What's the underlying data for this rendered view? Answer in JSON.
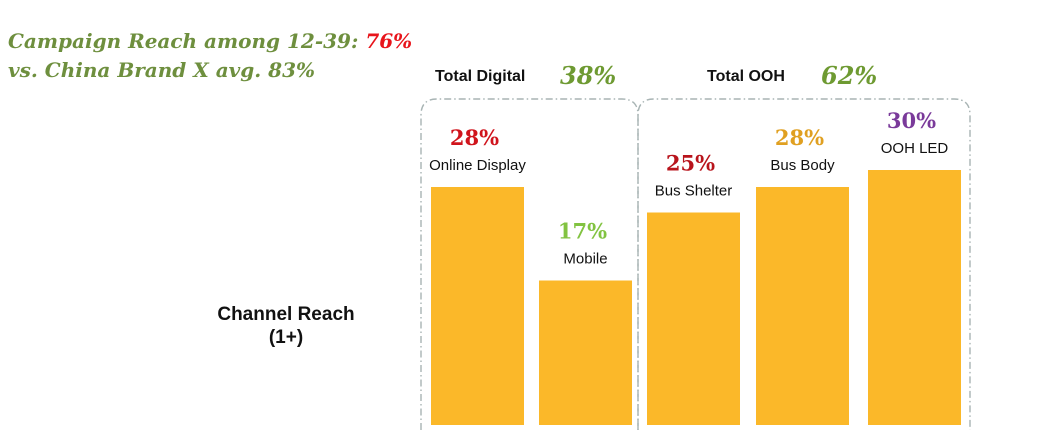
{
  "headline": {
    "line1_prefix": "Campaign Reach among 12-39: ",
    "line1_value": "76%",
    "line2": "vs. China Brand X avg. 83%"
  },
  "axis_title": {
    "line1": "Channel Reach",
    "line2": "(1+)"
  },
  "colors": {
    "headline": "#6e8f3e",
    "headline_value": "#e8141b",
    "bar": "#fbb829",
    "group_pct": "#6e9a32",
    "bracket": "#a8b4b4"
  },
  "chart_data": {
    "type": "bar",
    "title": "",
    "xlabel": "",
    "ylabel": "Channel Reach (1+)",
    "ylim": [
      0,
      30
    ],
    "categories": [
      "Online Display",
      "Mobile",
      "Bus Shelter",
      "Bus Body",
      "OOH LED"
    ],
    "values": [
      28,
      17,
      25,
      28,
      30
    ],
    "value_labels": [
      "28%",
      "17%",
      "25%",
      "28%",
      "30%"
    ],
    "value_label_colors": [
      "#d0141c",
      "#82c341",
      "#b8141c",
      "#e0a021",
      "#7a3a9a"
    ],
    "groups": [
      {
        "name": "Total Digital",
        "value": "38%",
        "members": [
          0,
          1
        ]
      },
      {
        "name": "Total OOH",
        "value": "62%",
        "members": [
          2,
          3,
          4
        ]
      }
    ]
  }
}
